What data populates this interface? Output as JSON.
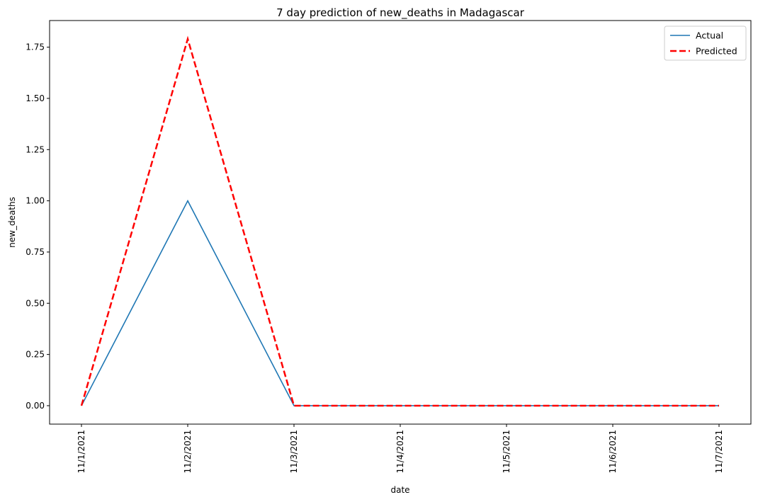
{
  "chart_data": {
    "type": "line",
    "title": "7 day prediction of new_deaths in Madagascar",
    "xlabel": "date",
    "ylabel": "new_deaths",
    "x": [
      "11/1/2021",
      "11/2/2021",
      "11/3/2021",
      "11/4/2021",
      "11/5/2021",
      "11/6/2021",
      "11/7/2021"
    ],
    "series": [
      {
        "name": "Actual",
        "values": [
          0,
          1,
          0,
          0,
          0,
          0,
          0
        ],
        "color": "#1f77b4",
        "style": "solid"
      },
      {
        "name": "Predicted",
        "values": [
          0,
          1.79,
          0,
          0,
          0,
          0,
          0
        ],
        "color": "#ff0000",
        "style": "dashed"
      }
    ],
    "yticks": [
      "0.00",
      "0.25",
      "0.50",
      "0.75",
      "1.00",
      "1.25",
      "1.50",
      "1.75"
    ],
    "ylim": [
      -0.09,
      1.88
    ],
    "grid": false,
    "legend_position": "top-right"
  }
}
